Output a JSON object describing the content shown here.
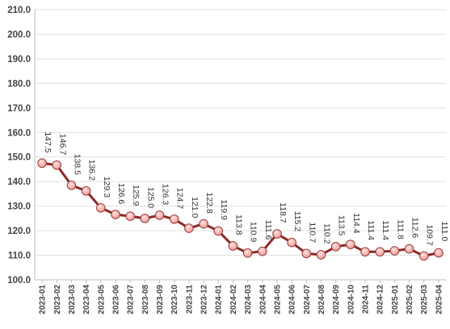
{
  "chart_data": {
    "type": "line",
    "title": "",
    "xlabel": "",
    "ylabel": "",
    "ylim": [
      100,
      210
    ],
    "yticks": [
      "100.0",
      "110.0",
      "120.0",
      "130.0",
      "140.0",
      "150.0",
      "160.0",
      "170.0",
      "180.0",
      "190.0",
      "200.0",
      "210.0"
    ],
    "grid": true,
    "legend": "none",
    "categories": [
      "2023-01",
      "2023-02",
      "2023-03",
      "2023-04",
      "2023-05",
      "2023-06",
      "2023-07",
      "2023-08",
      "2023-09",
      "2023-10",
      "2023-11",
      "2023-12",
      "2024-01",
      "2024-02",
      "2024-03",
      "2024-04",
      "2024-05",
      "2024-06",
      "2024-07",
      "2024-08",
      "2024-09",
      "2024-10",
      "2024-11",
      "2024-12",
      "2025-01",
      "2025-02",
      "2025-03",
      "2025-04"
    ],
    "values": [
      147.5,
      146.7,
      138.5,
      136.2,
      129.3,
      126.6,
      125.9,
      125.0,
      126.3,
      124.7,
      121.0,
      122.8,
      119.9,
      113.8,
      110.9,
      111.6,
      118.7,
      115.2,
      110.7,
      110.2,
      113.5,
      114.4,
      111.4,
      111.4,
      111.8,
      112.6,
      109.7,
      111.0
    ],
    "data_labels": [
      "147.5",
      "146.7",
      "138.5",
      "136.2",
      "129.3",
      "126.6",
      "125.9",
      "125.0",
      "126.3",
      "124.7",
      "121.0",
      "122.8",
      "119.9",
      "113.8",
      "110.9",
      "111.6",
      "118.7",
      "115.2",
      "110.7",
      "110.2",
      "113.5",
      "114.4",
      "111.4",
      "111.4",
      "111.8",
      "112.6",
      "109.7",
      "111.0"
    ],
    "colors": {
      "line": "#8b2a27",
      "marker_fill": "#f29a96",
      "marker_highlight": "#fde4e2",
      "marker_edge": "#9a3a37",
      "grid": "#e0e0e0",
      "axis": "#bfbfbf"
    }
  }
}
